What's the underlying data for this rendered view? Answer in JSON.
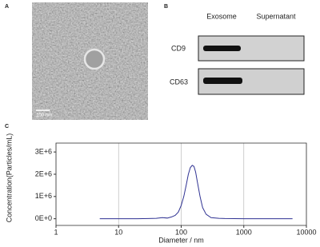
{
  "panel_labels": [
    "A",
    "B",
    "C"
  ],
  "tem_image": {
    "scale_bar": "100 nm"
  },
  "western_blot": {
    "lanes": [
      "Exosome",
      "Supernatant"
    ],
    "markers": [
      "CD9",
      "CD63"
    ]
  },
  "chart_data": {
    "type": "line",
    "x_label": "Diameter / nm",
    "y_label": "Concentration(Particles/mL)",
    "x_scale": "log",
    "grid": true,
    "color": "#2e3192",
    "x": [
      5,
      10,
      20,
      30,
      40,
      50,
      60,
      70,
      80,
      90,
      100,
      110,
      120,
      130,
      140,
      150,
      160,
      170,
      180,
      200,
      220,
      250,
      300,
      400,
      500,
      1000,
      6000
    ],
    "values": [
      0,
      0,
      0,
      10000,
      20000,
      50000,
      30000,
      80000,
      150000,
      300000,
      600000,
      1000000,
      1500000,
      2000000,
      2300000,
      2400000,
      2350000,
      2100000,
      1700000,
      1000000,
      500000,
      200000,
      50000,
      20000,
      10000,
      0,
      0
    ],
    "xlim": [
      1,
      10000
    ],
    "xticks": [
      1,
      10,
      100,
      1000,
      10000
    ],
    "ylim": [
      -300000,
      3400000
    ],
    "yticks": [
      {
        "value": 0,
        "label": "0E+0"
      },
      {
        "value": 1000000,
        "label": "1E+6"
      },
      {
        "value": 2000000,
        "label": "2E+6"
      },
      {
        "value": 3000000,
        "label": "3E+6"
      }
    ]
  }
}
